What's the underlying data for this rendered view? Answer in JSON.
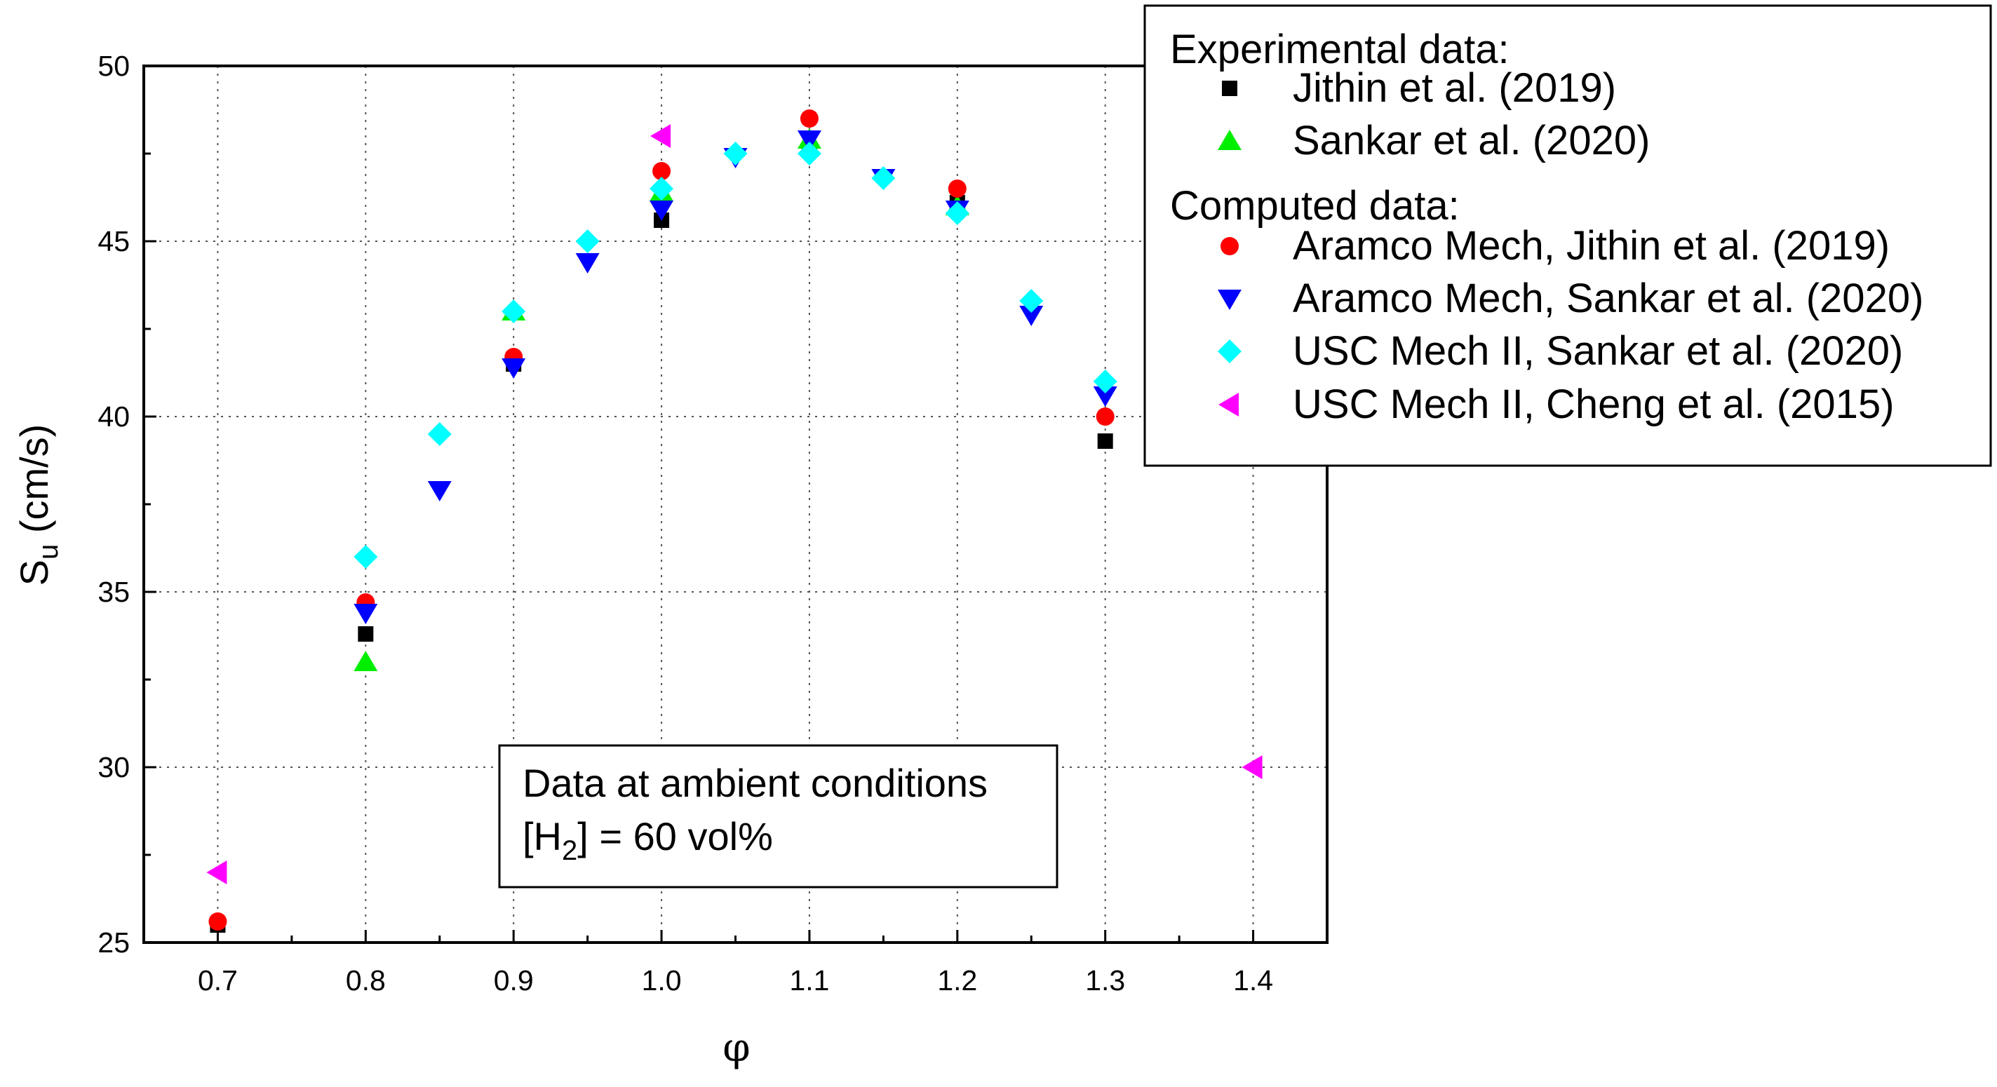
{
  "chart_data": {
    "type": "scatter",
    "title": "",
    "xlabel": "φ",
    "ylabel": "S",
    "ylabel_sub": "u",
    "ylabel_unit": "(cm/s)",
    "xlim": [
      0.65,
      1.45
    ],
    "ylim": [
      25,
      50
    ],
    "grid": true,
    "x_ticks": [
      "0.7",
      "0.8",
      "0.9",
      "1.0",
      "1.1",
      "1.2",
      "1.3",
      "1.4"
    ],
    "y_ticks": [
      "25",
      "30",
      "35",
      "40",
      "45",
      "50"
    ],
    "legend": {
      "position": "top-right",
      "group_experimental": "Experimental data:",
      "group_computed": "Computed data:"
    },
    "annotation": {
      "line1": "Data at ambient conditions",
      "line2_prefix": "[H",
      "line2_sub": "2",
      "line2_suffix": "] = 60 vol%"
    },
    "series": [
      {
        "name": "Jithin et al. (2019)",
        "group": "experimental",
        "marker": "square",
        "color": "#000000",
        "x": [
          0.7,
          0.8,
          0.9,
          1.0,
          1.1,
          1.2,
          1.3
        ],
        "y": [
          25.5,
          33.8,
          41.5,
          45.6,
          47.6,
          46.1,
          39.3
        ]
      },
      {
        "name": "Sankar et al. (2020)",
        "group": "experimental",
        "marker": "triangle-up",
        "color": "#00ee00",
        "x": [
          0.8,
          0.9,
          1.0,
          1.1,
          1.2
        ],
        "y": [
          33.0,
          43.0,
          46.4,
          47.9,
          46.0
        ]
      },
      {
        "name": "Aramco Mech, Jithin et al. (2019)",
        "group": "computed",
        "marker": "circle",
        "color": "#ff0000",
        "x": [
          0.7,
          0.8,
          0.9,
          1.0,
          1.1,
          1.2,
          1.3
        ],
        "y": [
          25.6,
          34.7,
          41.7,
          47.0,
          48.5,
          46.5,
          40.0
        ]
      },
      {
        "name": "Aramco Mech, Sankar et al. (2020)",
        "group": "computed",
        "marker": "triangle-down",
        "color": "#0000ff",
        "x": [
          0.8,
          0.85,
          0.9,
          0.95,
          1.0,
          1.05,
          1.1,
          1.15,
          1.2,
          1.25,
          1.3
        ],
        "y": [
          34.4,
          37.9,
          41.4,
          44.4,
          45.9,
          47.4,
          47.9,
          46.8,
          45.9,
          42.9,
          40.6
        ]
      },
      {
        "name": "USC Mech II, Sankar et al. (2020)",
        "group": "computed",
        "marker": "diamond",
        "color": "#00ffff",
        "x": [
          0.8,
          0.85,
          0.9,
          0.95,
          1.0,
          1.05,
          1.1,
          1.15,
          1.2,
          1.25,
          1.3
        ],
        "y": [
          36.0,
          39.5,
          43.0,
          45.0,
          46.5,
          47.5,
          47.5,
          46.8,
          45.8,
          43.3,
          41.0
        ]
      },
      {
        "name": "USC Mech II, Cheng et al. (2015)",
        "group": "computed",
        "marker": "triangle-left",
        "color": "#ff00ff",
        "x": [
          0.7,
          1.0,
          1.4
        ],
        "y": [
          27.0,
          48.0,
          30.0
        ]
      }
    ]
  }
}
